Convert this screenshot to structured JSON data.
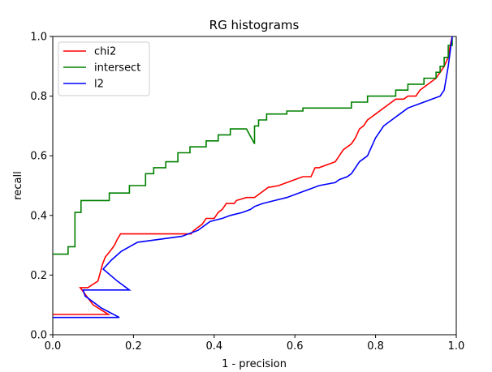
{
  "chart_data": {
    "type": "line",
    "title": "RG histograms",
    "xlabel": "1 - precision",
    "ylabel": "recall",
    "xlim": [
      0.0,
      1.0
    ],
    "ylim": [
      0.0,
      1.0
    ],
    "xticks": [
      "0.0",
      "0.2",
      "0.4",
      "0.6",
      "0.8",
      "1.0"
    ],
    "yticks": [
      "0.0",
      "0.2",
      "0.4",
      "0.6",
      "0.8",
      "1.0"
    ],
    "grid": false,
    "legend_position": "upper-left",
    "series": [
      {
        "name": "chi2",
        "color": "#ff0000",
        "x": [
          0.0,
          0.138,
          0.1,
          0.068,
          0.087,
          0.112,
          0.123,
          0.13,
          0.142,
          0.153,
          0.16,
          0.168,
          0.168,
          0.343,
          0.343,
          0.35,
          0.36,
          0.37,
          0.375,
          0.38,
          0.4,
          0.405,
          0.41,
          0.42,
          0.425,
          0.43,
          0.44,
          0.45,
          0.455,
          0.48,
          0.485,
          0.5,
          0.51,
          0.52,
          0.53,
          0.535,
          0.54,
          0.56,
          0.58,
          0.6,
          0.62,
          0.64,
          0.65,
          0.66,
          0.7,
          0.705,
          0.71,
          0.72,
          0.74,
          0.75,
          0.76,
          0.77,
          0.78,
          0.79,
          0.8,
          0.81,
          0.82,
          0.83,
          0.84,
          0.85,
          0.87,
          0.88,
          0.9,
          0.91,
          0.93,
          0.95,
          0.96,
          0.97,
          0.98,
          0.985,
          0.99
        ],
        "y": [
          0.068,
          0.068,
          0.1,
          0.158,
          0.158,
          0.18,
          0.235,
          0.26,
          0.28,
          0.3,
          0.32,
          0.338,
          0.338,
          0.338,
          0.34,
          0.35,
          0.36,
          0.37,
          0.38,
          0.39,
          0.39,
          0.4,
          0.41,
          0.42,
          0.43,
          0.44,
          0.44,
          0.44,
          0.45,
          0.46,
          0.46,
          0.46,
          0.47,
          0.48,
          0.49,
          0.495,
          0.495,
          0.5,
          0.51,
          0.52,
          0.53,
          0.53,
          0.56,
          0.56,
          0.58,
          0.59,
          0.6,
          0.62,
          0.64,
          0.66,
          0.69,
          0.7,
          0.72,
          0.73,
          0.74,
          0.75,
          0.76,
          0.77,
          0.78,
          0.79,
          0.79,
          0.8,
          0.8,
          0.82,
          0.84,
          0.86,
          0.88,
          0.9,
          0.93,
          0.97,
          1.0
        ]
      },
      {
        "name": "intersect",
        "color": "#008000",
        "x": [
          0.0,
          0.038,
          0.038,
          0.055,
          0.055,
          0.07,
          0.07,
          0.14,
          0.14,
          0.19,
          0.19,
          0.23,
          0.23,
          0.25,
          0.25,
          0.28,
          0.28,
          0.31,
          0.31,
          0.34,
          0.34,
          0.38,
          0.38,
          0.41,
          0.41,
          0.44,
          0.44,
          0.48,
          0.5,
          0.5,
          0.51,
          0.51,
          0.53,
          0.53,
          0.58,
          0.58,
          0.62,
          0.62,
          0.74,
          0.74,
          0.78,
          0.78,
          0.85,
          0.85,
          0.88,
          0.88,
          0.92,
          0.92,
          0.95,
          0.95,
          0.96,
          0.96,
          0.97,
          0.97,
          0.98,
          0.98,
          0.99,
          0.99
        ],
        "y": [
          0.27,
          0.27,
          0.295,
          0.295,
          0.41,
          0.41,
          0.45,
          0.45,
          0.475,
          0.475,
          0.5,
          0.5,
          0.54,
          0.54,
          0.56,
          0.56,
          0.58,
          0.58,
          0.61,
          0.61,
          0.63,
          0.63,
          0.65,
          0.65,
          0.67,
          0.67,
          0.69,
          0.69,
          0.64,
          0.7,
          0.7,
          0.72,
          0.72,
          0.74,
          0.74,
          0.75,
          0.75,
          0.76,
          0.76,
          0.78,
          0.78,
          0.8,
          0.8,
          0.82,
          0.82,
          0.84,
          0.84,
          0.86,
          0.86,
          0.88,
          0.88,
          0.9,
          0.9,
          0.93,
          0.93,
          0.97,
          0.97,
          1.0
        ]
      },
      {
        "name": "l2",
        "color": "#0000ff",
        "x": [
          0.0,
          0.165,
          0.12,
          0.08,
          0.075,
          0.075,
          0.19,
          0.16,
          0.125,
          0.145,
          0.17,
          0.17,
          0.21,
          0.21,
          0.32,
          0.32,
          0.36,
          0.37,
          0.38,
          0.39,
          0.42,
          0.44,
          0.47,
          0.49,
          0.5,
          0.52,
          0.55,
          0.58,
          0.62,
          0.64,
          0.66,
          0.7,
          0.71,
          0.73,
          0.74,
          0.75,
          0.76,
          0.78,
          0.79,
          0.8,
          0.81,
          0.82,
          0.84,
          0.86,
          0.88,
          0.9,
          0.92,
          0.94,
          0.96,
          0.97,
          0.975,
          0.98,
          0.985,
          0.99
        ],
        "y": [
          0.058,
          0.058,
          0.09,
          0.13,
          0.15,
          0.15,
          0.15,
          0.18,
          0.22,
          0.25,
          0.28,
          0.28,
          0.31,
          0.31,
          0.33,
          0.33,
          0.35,
          0.36,
          0.37,
          0.38,
          0.39,
          0.4,
          0.41,
          0.42,
          0.43,
          0.44,
          0.45,
          0.46,
          0.48,
          0.49,
          0.5,
          0.51,
          0.52,
          0.53,
          0.54,
          0.56,
          0.58,
          0.6,
          0.63,
          0.66,
          0.68,
          0.7,
          0.72,
          0.74,
          0.76,
          0.77,
          0.78,
          0.79,
          0.8,
          0.82,
          0.86,
          0.9,
          0.95,
          1.0
        ]
      }
    ]
  }
}
